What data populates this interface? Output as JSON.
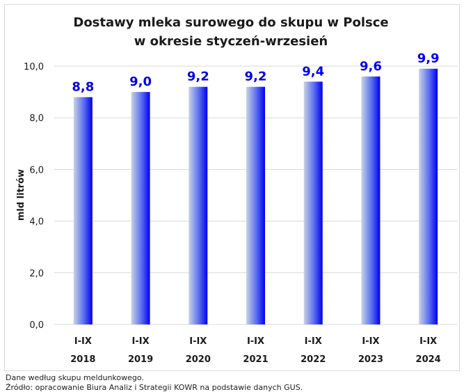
{
  "chart_data": {
    "type": "bar",
    "title": [
      "Dostawy mleka surowego do skupu w Polsce",
      "w okresie styczeń-wrzesień"
    ],
    "ylabel": "mld litrów",
    "xlabel": "",
    "ylim": [
      0,
      10
    ],
    "yticks": [
      0,
      2,
      4,
      6,
      8,
      10
    ],
    "ytick_labels": [
      "0,0",
      "2,0",
      "4,0",
      "6,0",
      "8,0",
      "10,0"
    ],
    "categories": [
      [
        "I-IX",
        "2018"
      ],
      [
        "I-IX",
        "2019"
      ],
      [
        "I-IX",
        "2020"
      ],
      [
        "I-IX",
        "2021"
      ],
      [
        "I-IX",
        "2022"
      ],
      [
        "I-IX",
        "2023"
      ],
      [
        "I-IX",
        "2024"
      ]
    ],
    "values": [
      8.8,
      9.0,
      9.2,
      9.2,
      9.4,
      9.6,
      9.9
    ],
    "value_labels": [
      "8,8",
      "9,0",
      "9,2",
      "9,2",
      "9,4",
      "9,6",
      "9,9"
    ],
    "grid": "horizontal",
    "legend": "none",
    "colors": {
      "bar_light": "#c8d4e4",
      "bar_dark": "#0000ee",
      "value_label": "#0000ee",
      "grid": "#d9d9d9",
      "axis_text": "#1a1a1a"
    }
  },
  "notes": {
    "line1": "Dane według skupu meldunkowego.",
    "line2": "Źródło: opracowanie Biura Analiz i Strategii KOWR na podstawie danych GUS."
  }
}
